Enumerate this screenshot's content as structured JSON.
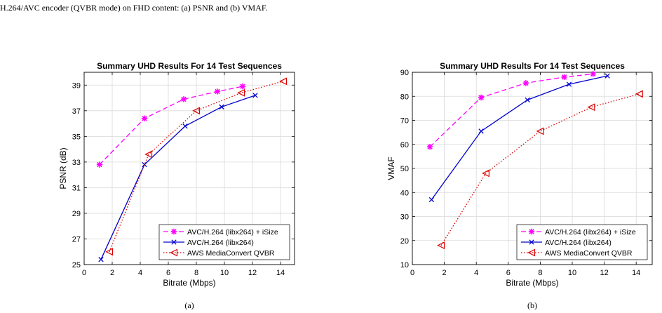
{
  "caption_text": "H.264/AVC encoder (QVBR mode) on FHD content: (a) PSNR and (b) VMAF.",
  "colors": {
    "isize": "#ff00ff",
    "avc": "#0000cc",
    "aws": "#dd0000",
    "axis": "#000000",
    "grid": "#d9d9d9"
  },
  "chart_data": [
    {
      "type": "line",
      "subcaption": "(a)",
      "title": "Summary UHD Results For 14 Test Sequences",
      "xlabel": "Bitrate (Mbps)",
      "ylabel": "PSNR (dB)",
      "xlim": [
        0,
        15
      ],
      "ylim": [
        25,
        40
      ],
      "xticks": [
        0,
        2,
        4,
        6,
        8,
        10,
        12,
        14
      ],
      "yticks": [
        25,
        27,
        29,
        31,
        33,
        35,
        37,
        39
      ],
      "grid": true,
      "legend_position": "bottom-right",
      "series": [
        {
          "name": "AVC/H.264 (libx264) + iSize",
          "x": [
            1.1,
            4.3,
            7.1,
            9.5,
            11.3
          ],
          "y": [
            32.8,
            36.4,
            37.9,
            38.5,
            38.9
          ]
        },
        {
          "name": "AVC/H.264 (libx264)",
          "x": [
            1.2,
            4.3,
            7.2,
            9.8,
            12.2
          ],
          "y": [
            25.4,
            32.8,
            35.8,
            37.3,
            38.2
          ]
        },
        {
          "name": "AWS MediaConvert QVBR",
          "x": [
            1.8,
            4.6,
            8.0,
            11.2,
            14.2
          ],
          "y": [
            26.0,
            33.6,
            37.0,
            38.4,
            39.3
          ]
        }
      ]
    },
    {
      "type": "line",
      "subcaption": "(b)",
      "title": "Summary UHD Results For 14 Test Sequences",
      "xlabel": "Bitrate (Mbps)",
      "ylabel": "VMAF",
      "xlim": [
        0,
        15
      ],
      "ylim": [
        10,
        90
      ],
      "xticks": [
        0,
        2,
        4,
        6,
        8,
        10,
        12,
        14
      ],
      "yticks": [
        10,
        20,
        30,
        40,
        50,
        60,
        70,
        80,
        90
      ],
      "grid": true,
      "legend_position": "bottom-right",
      "series": [
        {
          "name": "AVC/H.264 (libx264) + iSize",
          "x": [
            1.1,
            4.3,
            7.1,
            9.5,
            11.3
          ],
          "y": [
            59,
            79.5,
            85.5,
            88,
            89.3
          ]
        },
        {
          "name": "AVC/H.264 (libx264)",
          "x": [
            1.2,
            4.3,
            7.2,
            9.8,
            12.2
          ],
          "y": [
            37,
            65.5,
            78.5,
            85,
            88.5
          ]
        },
        {
          "name": "AWS MediaConvert QVBR",
          "x": [
            1.8,
            4.6,
            8.0,
            11.2,
            14.2
          ],
          "y": [
            18,
            48,
            65.5,
            75.5,
            81
          ]
        }
      ]
    }
  ]
}
